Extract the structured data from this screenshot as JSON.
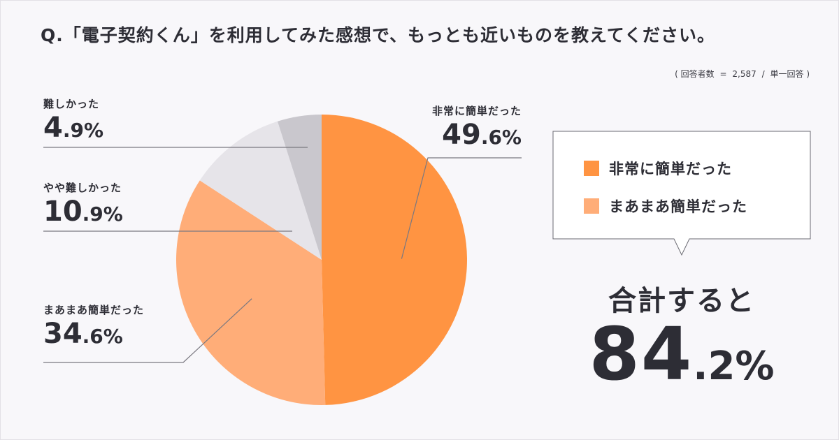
{
  "title": "Q.「電子契約くん」を利用してみた感想で、もっとも近いものを教えてください。",
  "note": {
    "open": "(",
    "label": "回答者数",
    "eq": "=",
    "count": "2,587",
    "slash": "/",
    "type": "単一回答",
    "close": ")"
  },
  "chart_data": {
    "type": "pie",
    "categories": [
      "非常に簡単だった",
      "まあまあ簡単だった",
      "やや難しかった",
      "難しかった"
    ],
    "values": [
      49.6,
      34.6,
      10.9,
      4.9
    ],
    "colors": [
      "#ff9442",
      "#ffad78",
      "#e6e4e9",
      "#c9c7cd"
    ],
    "labels": [
      {
        "name": "非常に簡単だった",
        "big": "49",
        "dec": ".6%"
      },
      {
        "name": "まあまあ簡単だった",
        "big": "34",
        "dec": ".6%"
      },
      {
        "name": "やや難しかった",
        "big": "10",
        "dec": ".9%"
      },
      {
        "name": "難しかった",
        "big": "4",
        "dec": ".9%"
      }
    ],
    "legend": [
      {
        "label": "非常に簡単だった",
        "color": "#ff9442"
      },
      {
        "label": "まあまあ簡単だった",
        "color": "#ffad78"
      }
    ]
  },
  "summary": {
    "label": "合計すると",
    "big": "84",
    "dec": ".2%"
  }
}
